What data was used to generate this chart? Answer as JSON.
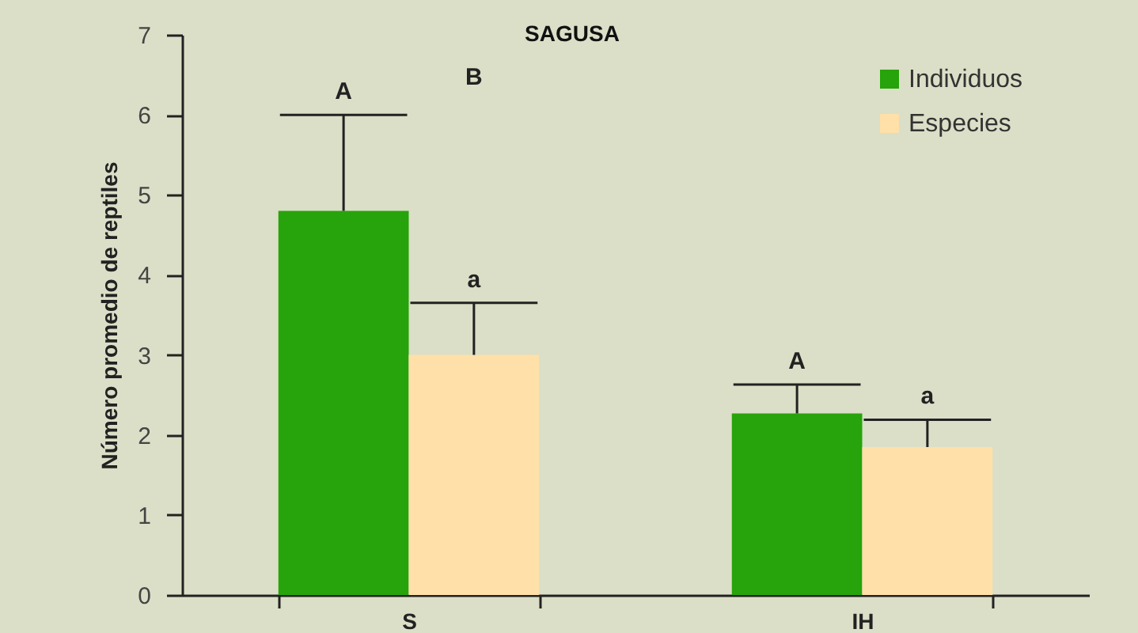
{
  "chart_data": {
    "type": "bar",
    "title": "SAGUSA",
    "ylabel": "Número promedio de reptiles",
    "categories": [
      "S",
      "IH"
    ],
    "series": [
      {
        "name": "Individuos",
        "color": "#27a30b",
        "values": [
          4.8,
          2.27
        ],
        "errors": [
          [
            4.8,
            6.0
          ],
          [
            2.27,
            2.63
          ]
        ]
      },
      {
        "name": "Especies",
        "color": "#fee0a8",
        "values": [
          3.0,
          1.85
        ],
        "errors": [
          [
            3.0,
            3.65
          ],
          [
            1.85,
            2.19
          ]
        ]
      }
    ],
    "ylim": [
      0,
      7
    ],
    "yticks": [
      0,
      1,
      2,
      3,
      4,
      5,
      6,
      7
    ],
    "legend": "top right",
    "annotations": [
      "A",
      "B",
      "a",
      "A",
      "a"
    ]
  }
}
